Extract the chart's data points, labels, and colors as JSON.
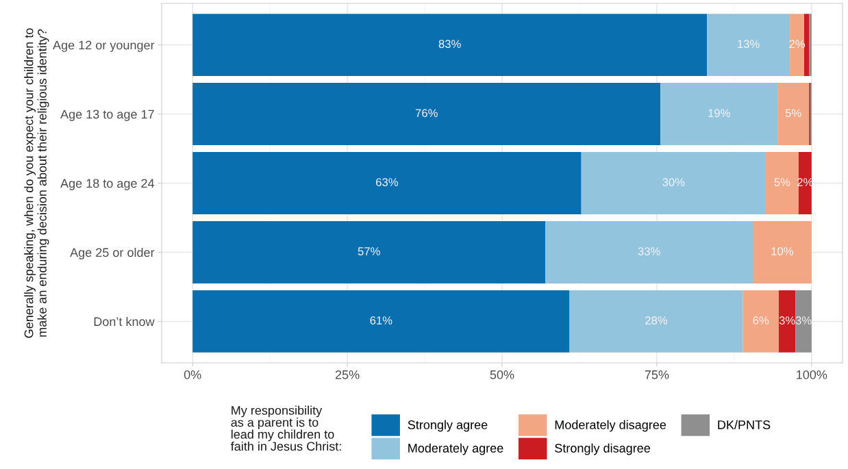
{
  "chart_data": {
    "type": "bar",
    "orientation": "horizontal",
    "stacked": true,
    "ylabel": "Generally speaking, when do you expect your children to\nmake an enduring decision about their religious identity?",
    "legend_title": "My responsibility\nas a parent is to\nlead my children to\nfaith in Jesus Christ:",
    "categories": [
      "Age 12 or younger",
      "Age 13 to age 17",
      "Age 18 to age 24",
      "Age 25 or older",
      "Don’t know"
    ],
    "series": [
      {
        "name": "Strongly agree",
        "color": "#0a6faf",
        "values": [
          83.1,
          75.6,
          62.8,
          57.0,
          60.9
        ],
        "value_labels": [
          "83%",
          "76%",
          "63%",
          "57%",
          "61%"
        ]
      },
      {
        "name": "Moderately agree",
        "color": "#93c4de",
        "values": [
          13.4,
          18.9,
          29.8,
          33.5,
          28.0
        ],
        "value_labels": [
          "13%",
          "19%",
          "30%",
          "33%",
          "28%"
        ]
      },
      {
        "name": "Moderately disagree",
        "color": "#f3a683",
        "values": [
          2.3,
          5.1,
          5.3,
          9.5,
          5.8
        ],
        "value_labels": [
          "2%",
          "5%",
          "5%",
          "10%",
          "6%"
        ]
      },
      {
        "name": "Strongly disagree",
        "color": "#cb1c22",
        "values": [
          0.8,
          0.2,
          2.1,
          null,
          2.7
        ],
        "value_labels": [
          null,
          null,
          "2%",
          null,
          "3%"
        ]
      },
      {
        "name": "DK/PNTS",
        "color": "#8f8f8f",
        "values": [
          0.4,
          0.2,
          null,
          null,
          2.6
        ],
        "value_labels": [
          null,
          null,
          null,
          null,
          "3%"
        ]
      }
    ],
    "xlim": [
      -5,
      105
    ],
    "xticks": [
      {
        "value": 0,
        "label": "0%"
      },
      {
        "value": 25,
        "label": "25%"
      },
      {
        "value": 50,
        "label": "50%"
      },
      {
        "value": 75,
        "label": "75%"
      },
      {
        "value": 100,
        "label": "100%"
      }
    ],
    "grid": true,
    "legend": "bottom"
  }
}
